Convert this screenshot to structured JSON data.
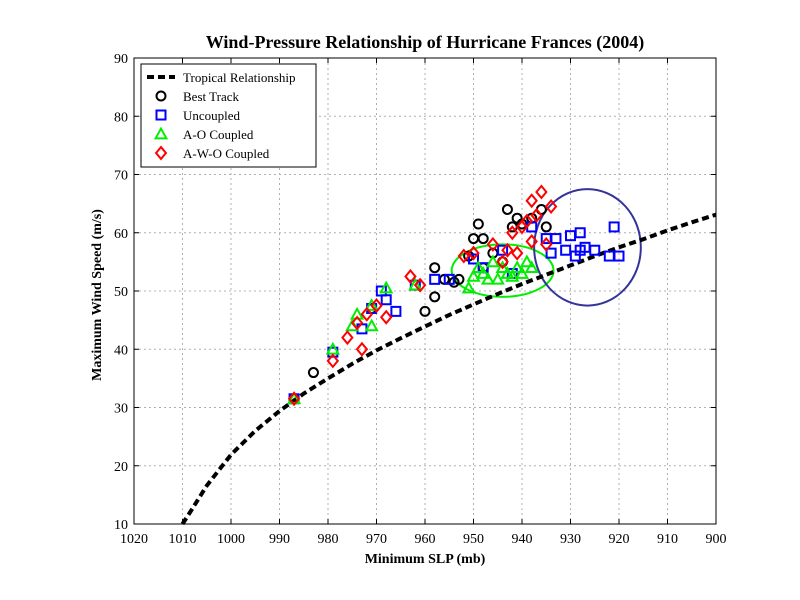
{
  "chart_data": {
    "type": "scatter",
    "title": "Wind-Pressure Relationship of Hurricane Frances (2004)",
    "xlabel": "Minimum SLP (mb)",
    "ylabel": "Maximum Wind Speed (m/s)",
    "xlim": [
      1020,
      900
    ],
    "ylim": [
      10,
      90
    ],
    "x_reversed": true,
    "grid": true,
    "legend_position": "top-left",
    "xticks": [
      1020,
      1010,
      1000,
      990,
      980,
      970,
      960,
      950,
      940,
      930,
      920,
      910,
      900
    ],
    "yticks": [
      10,
      20,
      30,
      40,
      50,
      60,
      70,
      80,
      90
    ],
    "series": [
      {
        "name": "Tropical Relationship",
        "kind": "line",
        "style": "dashed",
        "color": "#000000",
        "points": [
          [
            1010,
            10
          ],
          [
            1008,
            12.6
          ],
          [
            1005,
            16.6
          ],
          [
            1000,
            21.9
          ],
          [
            995,
            26
          ],
          [
            990,
            29.4
          ],
          [
            985,
            32.4
          ],
          [
            980,
            35
          ],
          [
            975,
            37.5
          ],
          [
            970,
            39.8
          ],
          [
            965,
            41.9
          ],
          [
            960,
            43.9
          ],
          [
            955,
            45.9
          ],
          [
            950,
            47.7
          ],
          [
            945,
            49.5
          ],
          [
            940,
            51.2
          ],
          [
            935,
            52.8
          ],
          [
            930,
            54.4
          ],
          [
            925,
            56
          ],
          [
            920,
            57.5
          ],
          [
            915,
            58.9
          ],
          [
            910,
            60.4
          ],
          [
            905,
            61.8
          ],
          [
            900,
            63.1
          ]
        ]
      },
      {
        "name": "Best Track",
        "kind": "markers",
        "marker": "circle",
        "color": "#000000",
        "points": [
          [
            987,
            31.5
          ],
          [
            983,
            36
          ],
          [
            971,
            47
          ],
          [
            960,
            46.5
          ],
          [
            958,
            49
          ],
          [
            958,
            54
          ],
          [
            956,
            52
          ],
          [
            954,
            51.5
          ],
          [
            953,
            52
          ],
          [
            951,
            56
          ],
          [
            950,
            59
          ],
          [
            949,
            61.5
          ],
          [
            948,
            59
          ],
          [
            948,
            54
          ],
          [
            946,
            56.5
          ],
          [
            944,
            55
          ],
          [
            943,
            64
          ],
          [
            942,
            61
          ],
          [
            941,
            62.5
          ],
          [
            940,
            61.5
          ],
          [
            938,
            62.5
          ],
          [
            936,
            64
          ],
          [
            935,
            61
          ]
        ]
      },
      {
        "name": "Uncoupled",
        "kind": "markers",
        "marker": "square",
        "color": "#0000ff",
        "points": [
          [
            987,
            31.5
          ],
          [
            979,
            39.5
          ],
          [
            973,
            43.5
          ],
          [
            971,
            47
          ],
          [
            969,
            50
          ],
          [
            968,
            48.5
          ],
          [
            966,
            46.5
          ],
          [
            962,
            51
          ],
          [
            958,
            52
          ],
          [
            955,
            52
          ],
          [
            950,
            55.5
          ],
          [
            948,
            54
          ],
          [
            944,
            57
          ],
          [
            942,
            53
          ],
          [
            938,
            61
          ],
          [
            935,
            59
          ],
          [
            934,
            56.5
          ],
          [
            933,
            59
          ],
          [
            931,
            57
          ],
          [
            930,
            59.5
          ],
          [
            929,
            56
          ],
          [
            928,
            57
          ],
          [
            928,
            60
          ],
          [
            927,
            57.5
          ],
          [
            925,
            57
          ],
          [
            922,
            56
          ],
          [
            921,
            61
          ],
          [
            920,
            56
          ]
        ]
      },
      {
        "name": "A-O Coupled",
        "kind": "markers",
        "marker": "triangle",
        "color": "#00ee00",
        "points": [
          [
            987,
            31.5
          ],
          [
            979,
            40
          ],
          [
            975,
            44
          ],
          [
            974,
            46
          ],
          [
            971,
            44
          ],
          [
            971,
            47.5
          ],
          [
            968,
            50.5
          ],
          [
            962,
            51
          ],
          [
            951,
            50.5
          ],
          [
            950,
            52.5
          ],
          [
            949,
            54
          ],
          [
            948,
            53
          ],
          [
            947,
            52
          ],
          [
            946,
            55
          ],
          [
            945,
            52
          ],
          [
            944,
            54
          ],
          [
            943,
            53
          ],
          [
            942,
            52.5
          ],
          [
            941,
            54
          ],
          [
            940,
            53
          ],
          [
            939,
            55
          ],
          [
            938,
            54
          ]
        ]
      },
      {
        "name": "A-W-O Coupled",
        "kind": "markers",
        "marker": "diamond",
        "color": "#ff0000",
        "points": [
          [
            987,
            31.5
          ],
          [
            979,
            38
          ],
          [
            976,
            42
          ],
          [
            974,
            44.5
          ],
          [
            973,
            40
          ],
          [
            972,
            46
          ],
          [
            970,
            47.5
          ],
          [
            968,
            45.5
          ],
          [
            963,
            52.5
          ],
          [
            961,
            51
          ],
          [
            952,
            56
          ],
          [
            950,
            56.5
          ],
          [
            946,
            58
          ],
          [
            944,
            55
          ],
          [
            943,
            57
          ],
          [
            942,
            60
          ],
          [
            941,
            56.5
          ],
          [
            940,
            61
          ],
          [
            939,
            62
          ],
          [
            938,
            65.5
          ],
          [
            938,
            58.5
          ],
          [
            937,
            63
          ],
          [
            936,
            67
          ],
          [
            935,
            58
          ],
          [
            934,
            64.5
          ]
        ]
      }
    ],
    "annotations": [
      {
        "shape": "ellipse",
        "color": "#00ee00",
        "center": [
          944,
          53.5
        ],
        "radius_x_mb": 10.5,
        "radius_y_ms": 4.5
      },
      {
        "shape": "ellipse",
        "color": "#333399",
        "center": [
          926.5,
          57.5
        ],
        "radius_x_mb": 11,
        "radius_y_ms": 10
      }
    ]
  }
}
